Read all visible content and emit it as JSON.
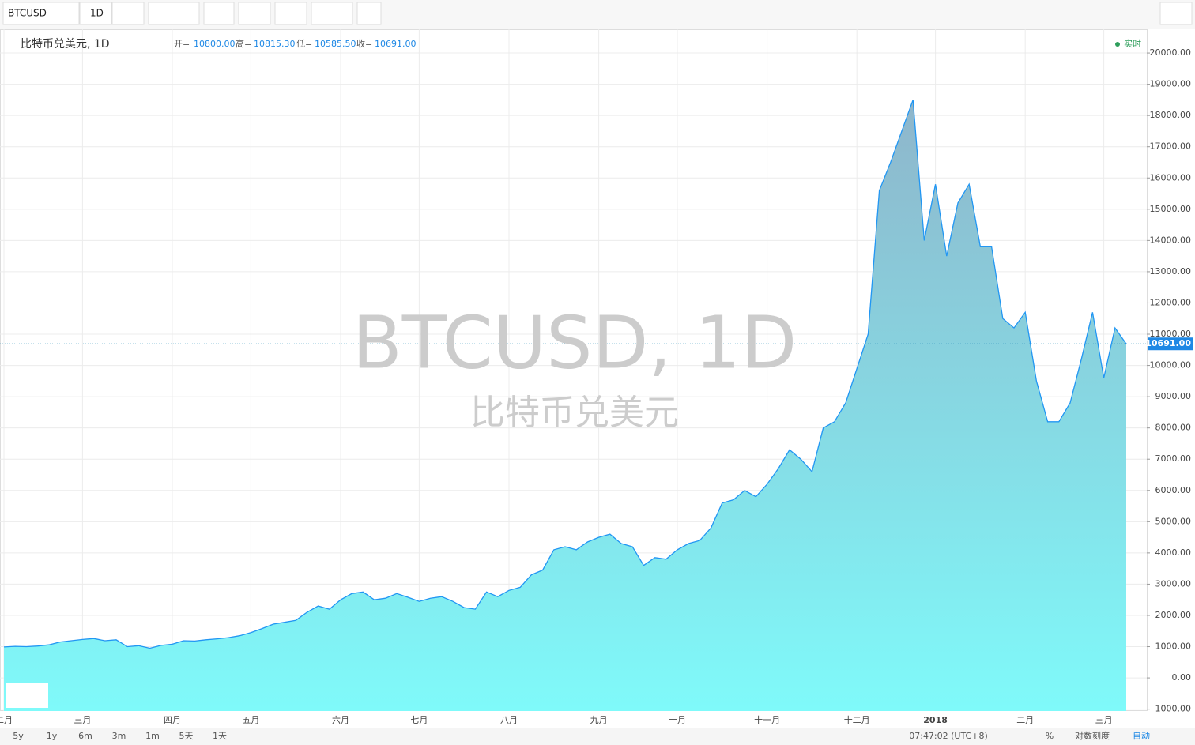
{
  "toolbar": {
    "symbol": "BTCUSD",
    "interval": "1D"
  },
  "legend": {
    "name": "比特币兑美元, 1D",
    "open_label": "开=",
    "open": "10800.00",
    "high_label": "高=",
    "high": "10815.30",
    "low_label": "低=",
    "low": "10585.50",
    "close_label": "收=",
    "close": "10691.00",
    "status": "实时"
  },
  "watermark": {
    "title": "BTCUSD, 1D",
    "subtitle": "比特币兑美元"
  },
  "bottom_bar": {
    "ranges": [
      "5y",
      "1y",
      "6m",
      "3m",
      "1m",
      "5天",
      "1天"
    ],
    "time": "07:47:02 (UTC+8)",
    "percent": "%",
    "log": "对数刻度",
    "auto": "自动"
  },
  "chart_data": {
    "type": "area",
    "color": "#2196f3",
    "grid": true,
    "categories": [
      "二月",
      null,
      null,
      null,
      null,
      null,
      null,
      "三月",
      null,
      null,
      null,
      null,
      null,
      null,
      null,
      "四月",
      null,
      null,
      null,
      null,
      null,
      null,
      "五月",
      null,
      null,
      null,
      null,
      null,
      null,
      null,
      "六月",
      null,
      null,
      null,
      null,
      null,
      null,
      "七月",
      null,
      null,
      null,
      null,
      null,
      null,
      null,
      "八月",
      null,
      null,
      null,
      null,
      null,
      null,
      null,
      "九月",
      null,
      null,
      null,
      null,
      null,
      null,
      "十月",
      null,
      null,
      null,
      null,
      null,
      null,
      null,
      "十一月",
      null,
      null,
      null,
      null,
      null,
      null,
      null,
      "十二月",
      null,
      null,
      null,
      null,
      null,
      null,
      "2018",
      null,
      null,
      null,
      null,
      null,
      null,
      null,
      "二月",
      null,
      null,
      null,
      null,
      null,
      null,
      "三月",
      null,
      null
    ],
    "values": [
      990,
      1010,
      1000,
      1020,
      1060,
      1150,
      1190,
      1230,
      1260,
      1190,
      1220,
      1000,
      1030,
      950,
      1040,
      1080,
      1190,
      1180,
      1220,
      1250,
      1290,
      1350,
      1450,
      1580,
      1720,
      1780,
      1840,
      2100,
      2300,
      2200,
      2500,
      2700,
      2750,
      2500,
      2550,
      2700,
      2580,
      2450,
      2550,
      2600,
      2450,
      2250,
      2200,
      2750,
      2600,
      2800,
      2900,
      3300,
      3450,
      4100,
      4200,
      4100,
      4350,
      4500,
      4600,
      4300,
      4200,
      3600,
      3850,
      3800,
      4100,
      4300,
      4400,
      4800,
      5600,
      5700,
      6000,
      5800,
      6200,
      6700,
      7300,
      7000,
      6600,
      8000,
      8200,
      8800,
      9900,
      11000,
      15600,
      16500,
      17500,
      18500,
      14000,
      15800,
      13500,
      15200,
      15800,
      13800,
      13800,
      11500,
      11200,
      11700,
      9500,
      8200,
      8200,
      8800,
      10200,
      11700,
      9600,
      11200,
      10691
    ],
    "ylim": [
      -1060,
      20760
    ],
    "yticks": [
      {
        "value": -1000,
        "label": "-1000.00"
      },
      {
        "value": 0,
        "label": "0.00"
      },
      {
        "value": 1000,
        "label": "1000.00"
      },
      {
        "value": 2000,
        "label": "2000.00"
      },
      {
        "value": 3000,
        "label": "3000.00"
      },
      {
        "value": 4000,
        "label": "4000.00"
      },
      {
        "value": 5000,
        "label": "5000.00"
      },
      {
        "value": 6000,
        "label": "6000.00"
      },
      {
        "value": 7000,
        "label": "7000.00"
      },
      {
        "value": 8000,
        "label": "8000.00"
      },
      {
        "value": 9000,
        "label": "9000.00"
      },
      {
        "value": 10000,
        "label": "10000.00"
      },
      {
        "value": 11000,
        "label": "11000.00"
      },
      {
        "value": 12000,
        "label": "12000.00"
      },
      {
        "value": 13000,
        "label": "13000.00"
      },
      {
        "value": 14000,
        "label": "14000.00"
      },
      {
        "value": 15000,
        "label": "15000.00"
      },
      {
        "value": 16000,
        "label": "16000.00"
      },
      {
        "value": 17000,
        "label": "17000.00"
      },
      {
        "value": 18000,
        "label": "18000.00"
      },
      {
        "value": 19000,
        "label": "19000.00"
      },
      {
        "value": 20000,
        "label": "20000.00"
      }
    ]
  }
}
